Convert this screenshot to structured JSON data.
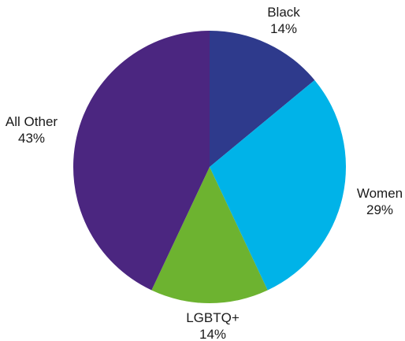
{
  "chart_data": {
    "type": "pie",
    "title": "",
    "slices": [
      {
        "label": "Black",
        "value_label": "14%",
        "value": 14,
        "color": "#2e3a8c"
      },
      {
        "label": "Women",
        "value_label": "29%",
        "value": 29,
        "color": "#00b3e8"
      },
      {
        "label": "LGBTQ+",
        "value_label": "14%",
        "value": 14,
        "color": "#6db330"
      },
      {
        "label": "All Other",
        "value_label": "43%",
        "value": 43,
        "color": "#4b2680"
      }
    ],
    "start_angle": "12 o'clock",
    "direction": "clockwise",
    "legend": "none"
  }
}
